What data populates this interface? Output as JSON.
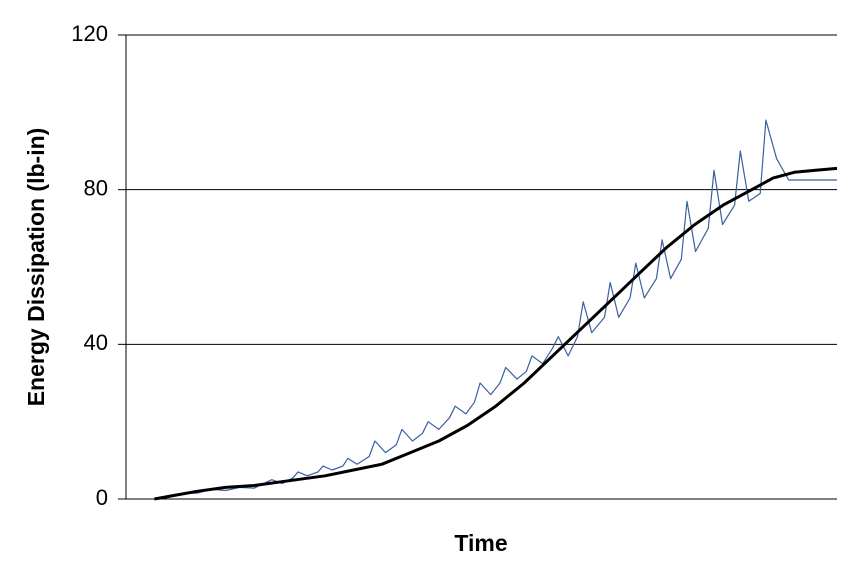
{
  "chart_data": {
    "type": "line",
    "x_label": "Time",
    "y_label": "Energy Dissipation (lb-in)",
    "xlim": [
      0,
      100
    ],
    "ylim": [
      0,
      120
    ],
    "yticks": [
      0,
      40,
      80,
      120
    ],
    "grid": true,
    "series": [
      {
        "color": "#3a5fa0",
        "x": [
          4,
          6,
          8,
          10,
          12,
          14,
          16,
          18,
          20.5,
          22,
          23.5,
          24.2,
          25.5,
          27,
          27.7,
          29,
          30.5,
          31.2,
          32.5,
          34.2,
          35,
          36.5,
          38,
          38.8,
          40.3,
          41.7,
          42.5,
          44,
          45.5,
          46.3,
          47.8,
          49,
          49.8,
          51.3,
          52.6,
          53.4,
          55,
          56.3,
          57.1,
          58.6,
          60,
          60.8,
          62.2,
          63.5,
          64.3,
          65.5,
          67.3,
          68.1,
          69.3,
          70.9,
          71.7,
          72.9,
          74.6,
          75.4,
          76.6,
          78.1,
          78.9,
          80.1,
          81.9,
          82.7,
          83.9,
          85.6,
          86.4,
          87.6,
          89.2,
          90,
          91.5,
          93.2,
          100
        ],
        "values": [
          0,
          0.5,
          1.5,
          1.5,
          2.5,
          2.2,
          3,
          2.8,
          5,
          4,
          5.5,
          7,
          6,
          7,
          8.5,
          7.5,
          8.5,
          10.5,
          9,
          11,
          15,
          12,
          14,
          18,
          15,
          17,
          20,
          18,
          21,
          24,
          22,
          25,
          30,
          27,
          30,
          34,
          31,
          33,
          37,
          35,
          39,
          42,
          37,
          42,
          51,
          43,
          47,
          56,
          47,
          52,
          61,
          52,
          57,
          67,
          57,
          62,
          77,
          64,
          70,
          85,
          71,
          76,
          90,
          77,
          79,
          98,
          88,
          82.5,
          82.5
        ]
      },
      {
        "color": "#000000",
        "x": [
          4,
          7,
          10,
          14,
          18,
          24,
          28,
          32,
          36,
          40,
          44,
          48,
          52,
          56,
          60,
          64,
          68,
          72,
          76,
          80,
          84,
          88,
          91,
          94,
          97,
          100
        ],
        "values": [
          0,
          1,
          2,
          3,
          3.5,
          5,
          6,
          7.5,
          9,
          12,
          15,
          19,
          24,
          30,
          37,
          44,
          51,
          58,
          65,
          71,
          76,
          80,
          83,
          84.5,
          85,
          85.5
        ]
      }
    ]
  }
}
